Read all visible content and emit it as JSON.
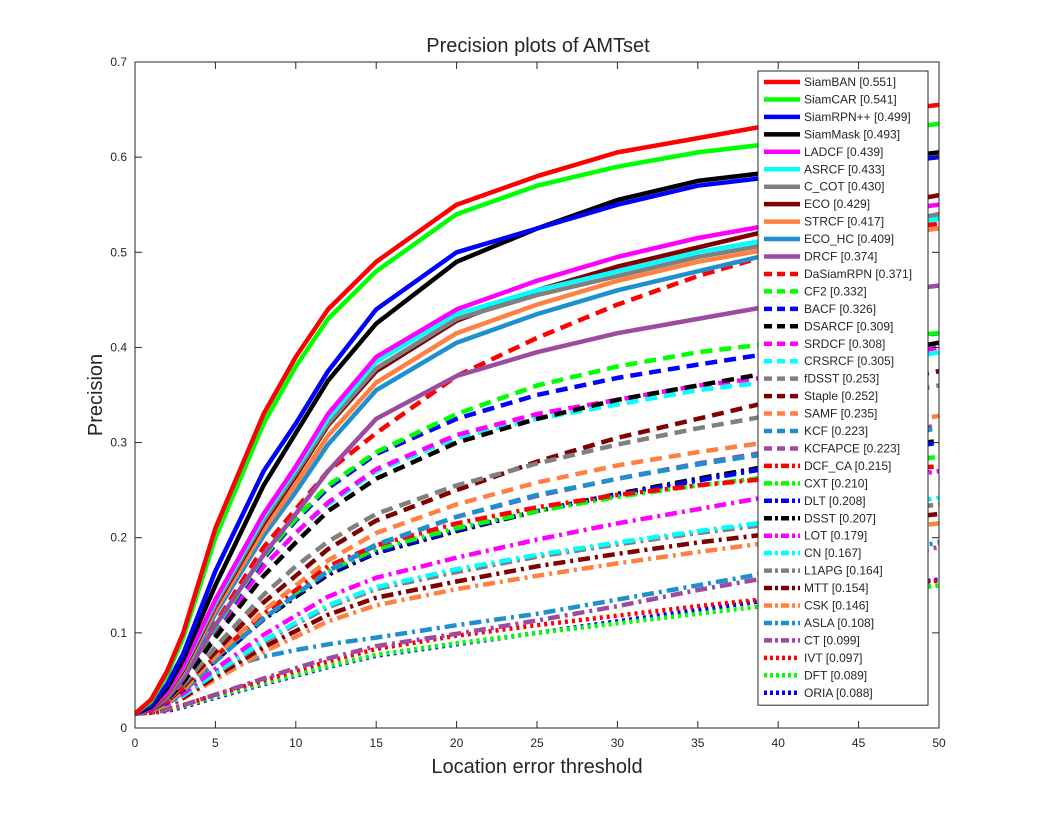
{
  "chart_data": {
    "type": "line",
    "title": "Precision plots of AMTset",
    "xlabel": "Location error threshold",
    "ylabel": "Precision",
    "xlim": [
      0,
      50
    ],
    "ylim": [
      0,
      0.7
    ],
    "xticks": [
      0,
      5,
      10,
      15,
      20,
      25,
      30,
      35,
      40,
      45,
      50
    ],
    "yticks": [
      0,
      0.1,
      0.2,
      0.3,
      0.4,
      0.5,
      0.6,
      0.7
    ],
    "grid": false,
    "legend_position": "top-right",
    "x": [
      0,
      1,
      2,
      3,
      5,
      8,
      10,
      12,
      15,
      20,
      25,
      30,
      35,
      40,
      45,
      50
    ],
    "series": [
      {
        "name": "SiamBAN [0.551]",
        "color": "#ff0000",
        "style": "solid",
        "values": [
          0.015,
          0.03,
          0.06,
          0.1,
          0.21,
          0.33,
          0.39,
          0.44,
          0.49,
          0.55,
          0.58,
          0.605,
          0.62,
          0.635,
          0.645,
          0.655
        ]
      },
      {
        "name": "SiamCAR [0.541]",
        "color": "#00ff00",
        "style": "solid",
        "values": [
          0.015,
          0.028,
          0.056,
          0.095,
          0.2,
          0.32,
          0.38,
          0.43,
          0.48,
          0.54,
          0.57,
          0.59,
          0.605,
          0.615,
          0.625,
          0.635
        ]
      },
      {
        "name": "SiamRPN++ [0.499]",
        "color": "#0000ff",
        "style": "solid",
        "values": [
          0.015,
          0.024,
          0.046,
          0.078,
          0.165,
          0.27,
          0.32,
          0.375,
          0.44,
          0.5,
          0.525,
          0.55,
          0.57,
          0.58,
          0.59,
          0.6
        ]
      },
      {
        "name": "SiamMask [0.493]",
        "color": "#000000",
        "style": "solid",
        "values": [
          0.015,
          0.022,
          0.042,
          0.072,
          0.15,
          0.255,
          0.31,
          0.365,
          0.425,
          0.49,
          0.525,
          0.555,
          0.575,
          0.585,
          0.595,
          0.605
        ]
      },
      {
        "name": "LADCF [0.439]",
        "color": "#ff00ff",
        "style": "solid",
        "values": [
          0.015,
          0.021,
          0.038,
          0.065,
          0.135,
          0.225,
          0.275,
          0.33,
          0.39,
          0.44,
          0.47,
          0.495,
          0.515,
          0.53,
          0.54,
          0.55
        ]
      },
      {
        "name": "ASRCF [0.433]",
        "color": "#00ffff",
        "style": "solid",
        "values": [
          0.015,
          0.021,
          0.038,
          0.064,
          0.133,
          0.222,
          0.272,
          0.325,
          0.385,
          0.435,
          0.46,
          0.48,
          0.5,
          0.515,
          0.525,
          0.535
        ]
      },
      {
        "name": "C_COT [0.430]",
        "color": "#808080",
        "style": "solid",
        "values": [
          0.015,
          0.021,
          0.037,
          0.063,
          0.13,
          0.218,
          0.268,
          0.32,
          0.378,
          0.43,
          0.455,
          0.475,
          0.495,
          0.51,
          0.525,
          0.54
        ]
      },
      {
        "name": "ECO [0.429]",
        "color": "#800000",
        "style": "solid",
        "values": [
          0.015,
          0.02,
          0.036,
          0.061,
          0.128,
          0.215,
          0.265,
          0.318,
          0.375,
          0.428,
          0.46,
          0.485,
          0.505,
          0.525,
          0.545,
          0.56
        ]
      },
      {
        "name": "STRCF [0.417]",
        "color": "#ff8040",
        "style": "solid",
        "values": [
          0.015,
          0.02,
          0.035,
          0.059,
          0.124,
          0.208,
          0.256,
          0.307,
          0.363,
          0.415,
          0.445,
          0.47,
          0.49,
          0.505,
          0.515,
          0.525
        ]
      },
      {
        "name": "ECO_HC [0.409]",
        "color": "#1e90d0",
        "style": "solid",
        "values": [
          0.015,
          0.02,
          0.034,
          0.057,
          0.12,
          0.202,
          0.248,
          0.298,
          0.355,
          0.405,
          0.435,
          0.46,
          0.48,
          0.5,
          0.52,
          0.54
        ]
      },
      {
        "name": "DRCF [0.374]",
        "color": "#9b4ba0",
        "style": "solid",
        "values": [
          0.015,
          0.019,
          0.031,
          0.052,
          0.108,
          0.182,
          0.225,
          0.27,
          0.325,
          0.37,
          0.395,
          0.415,
          0.43,
          0.445,
          0.455,
          0.465
        ]
      },
      {
        "name": "DaSiamRPN [0.371]",
        "color": "#ff0000",
        "style": "dashed",
        "values": [
          0.015,
          0.02,
          0.034,
          0.056,
          0.11,
          0.19,
          0.23,
          0.27,
          0.31,
          0.37,
          0.41,
          0.445,
          0.475,
          0.5,
          0.52,
          0.53
        ]
      },
      {
        "name": "CF2 [0.332]",
        "color": "#00ff00",
        "style": "dashed",
        "values": [
          0.015,
          0.02,
          0.033,
          0.054,
          0.105,
          0.18,
          0.22,
          0.255,
          0.29,
          0.33,
          0.36,
          0.38,
          0.395,
          0.405,
          0.41,
          0.415
        ]
      },
      {
        "name": "BACF [0.326]",
        "color": "#0000ff",
        "style": "dashed",
        "values": [
          0.015,
          0.02,
          0.033,
          0.054,
          0.104,
          0.178,
          0.218,
          0.252,
          0.288,
          0.325,
          0.35,
          0.368,
          0.382,
          0.395,
          0.405,
          0.415
        ]
      },
      {
        "name": "DSARCF [0.309]",
        "color": "#000000",
        "style": "dashed",
        "values": [
          0.015,
          0.019,
          0.03,
          0.048,
          0.095,
          0.16,
          0.195,
          0.228,
          0.262,
          0.3,
          0.325,
          0.345,
          0.36,
          0.375,
          0.39,
          0.405
        ]
      },
      {
        "name": "SRDCF [0.308]",
        "color": "#ff00ff",
        "style": "dashed",
        "values": [
          0.015,
          0.02,
          0.032,
          0.052,
          0.1,
          0.17,
          0.205,
          0.237,
          0.272,
          0.308,
          0.33,
          0.345,
          0.36,
          0.37,
          0.385,
          0.4
        ]
      },
      {
        "name": "CRSRCF [0.305]",
        "color": "#00ffff",
        "style": "dashed",
        "values": [
          0.015,
          0.02,
          0.032,
          0.052,
          0.1,
          0.17,
          0.205,
          0.235,
          0.27,
          0.305,
          0.325,
          0.34,
          0.355,
          0.365,
          0.38,
          0.395
        ]
      },
      {
        "name": "fDSST [0.253]",
        "color": "#808080",
        "style": "dashed",
        "values": [
          0.015,
          0.019,
          0.029,
          0.045,
          0.085,
          0.14,
          0.17,
          0.196,
          0.225,
          0.255,
          0.278,
          0.298,
          0.315,
          0.33,
          0.345,
          0.36
        ]
      },
      {
        "name": "Staple [0.252]",
        "color": "#800000",
        "style": "dashed",
        "values": [
          0.015,
          0.019,
          0.028,
          0.043,
          0.08,
          0.132,
          0.16,
          0.188,
          0.218,
          0.25,
          0.28,
          0.305,
          0.325,
          0.345,
          0.36,
          0.375
        ]
      },
      {
        "name": "SAMF [0.235]",
        "color": "#ff8040",
        "style": "dashed",
        "values": [
          0.015,
          0.018,
          0.026,
          0.04,
          0.075,
          0.123,
          0.15,
          0.176,
          0.205,
          0.235,
          0.258,
          0.276,
          0.29,
          0.302,
          0.315,
          0.328
        ]
      },
      {
        "name": "KCF [0.223]",
        "color": "#1e90d0",
        "style": "dashed",
        "values": [
          0.015,
          0.018,
          0.025,
          0.038,
          0.07,
          0.115,
          0.14,
          0.165,
          0.193,
          0.222,
          0.245,
          0.262,
          0.277,
          0.29,
          0.302,
          0.315
        ]
      },
      {
        "name": "KCFAPCE [0.223]",
        "color": "#9b4ba0",
        "style": "dashed",
        "values": [
          0.015,
          0.018,
          0.025,
          0.038,
          0.07,
          0.115,
          0.14,
          0.165,
          0.192,
          0.222,
          0.244,
          0.262,
          0.278,
          0.292,
          0.305,
          0.318
        ]
      },
      {
        "name": "DCF_CA [0.215]",
        "color": "#ff0000",
        "style": "dashdot",
        "values": [
          0.015,
          0.019,
          0.028,
          0.042,
          0.075,
          0.12,
          0.145,
          0.17,
          0.192,
          0.215,
          0.232,
          0.245,
          0.255,
          0.263,
          0.27,
          0.275
        ]
      },
      {
        "name": "CXT [0.210]",
        "color": "#00ff00",
        "style": "dashdot",
        "values": [
          0.015,
          0.019,
          0.028,
          0.042,
          0.074,
          0.118,
          0.142,
          0.165,
          0.188,
          0.21,
          0.228,
          0.243,
          0.255,
          0.265,
          0.275,
          0.285
        ]
      },
      {
        "name": "DLT [0.208]",
        "color": "#0000ff",
        "style": "dashdot",
        "values": [
          0.015,
          0.019,
          0.027,
          0.041,
          0.072,
          0.115,
          0.14,
          0.163,
          0.185,
          0.208,
          0.228,
          0.245,
          0.26,
          0.275,
          0.288,
          0.3
        ]
      },
      {
        "name": "DSST [0.207]",
        "color": "#000000",
        "style": "dashdot",
        "values": [
          0.015,
          0.019,
          0.027,
          0.04,
          0.071,
          0.114,
          0.138,
          0.161,
          0.184,
          0.207,
          0.228,
          0.246,
          0.262,
          0.277,
          0.29,
          0.302
        ]
      },
      {
        "name": "LOT [0.179]",
        "color": "#ff00ff",
        "style": "dashdot",
        "values": [
          0.015,
          0.018,
          0.025,
          0.036,
          0.062,
          0.098,
          0.118,
          0.138,
          0.158,
          0.179,
          0.198,
          0.215,
          0.23,
          0.245,
          0.258,
          0.27
        ]
      },
      {
        "name": "CN [0.167]",
        "color": "#00ffff",
        "style": "dashdot",
        "values": [
          0.015,
          0.018,
          0.024,
          0.034,
          0.058,
          0.092,
          0.111,
          0.129,
          0.148,
          0.167,
          0.182,
          0.195,
          0.207,
          0.218,
          0.23,
          0.242
        ]
      },
      {
        "name": "L1APG [0.164]",
        "color": "#808080",
        "style": "dashdot",
        "values": [
          0.015,
          0.018,
          0.024,
          0.034,
          0.057,
          0.09,
          0.109,
          0.127,
          0.146,
          0.164,
          0.18,
          0.193,
          0.205,
          0.215,
          0.225,
          0.235
        ]
      },
      {
        "name": "MTT [0.154]",
        "color": "#800000",
        "style": "dashdot",
        "values": [
          0.015,
          0.017,
          0.023,
          0.032,
          0.054,
          0.085,
          0.102,
          0.119,
          0.137,
          0.154,
          0.17,
          0.183,
          0.195,
          0.205,
          0.215,
          0.225
        ]
      },
      {
        "name": "CSK [0.146]",
        "color": "#ff8040",
        "style": "dashdot",
        "values": [
          0.015,
          0.017,
          0.022,
          0.031,
          0.051,
          0.08,
          0.096,
          0.112,
          0.129,
          0.146,
          0.16,
          0.173,
          0.185,
          0.196,
          0.206,
          0.215
        ]
      },
      {
        "name": "ASLA [0.108]",
        "color": "#1e90d0",
        "style": "dashdot",
        "values": [
          0.015,
          0.025,
          0.035,
          0.045,
          0.06,
          0.075,
          0.082,
          0.088,
          0.095,
          0.108,
          0.12,
          0.135,
          0.15,
          0.165,
          0.18,
          0.195
        ]
      },
      {
        "name": "CT [0.099]",
        "color": "#9b4ba0",
        "style": "dashdot",
        "values": [
          0.015,
          0.016,
          0.019,
          0.024,
          0.035,
          0.052,
          0.063,
          0.073,
          0.086,
          0.099,
          0.113,
          0.128,
          0.145,
          0.16,
          0.175,
          0.19
        ]
      },
      {
        "name": "IVT [0.097]",
        "color": "#ff0000",
        "style": "dotted",
        "values": [
          0.015,
          0.016,
          0.019,
          0.024,
          0.035,
          0.05,
          0.06,
          0.07,
          0.083,
          0.097,
          0.108,
          0.118,
          0.128,
          0.137,
          0.146,
          0.155
        ]
      },
      {
        "name": "DFT [0.089]",
        "color": "#00ff00",
        "style": "dotted",
        "values": [
          0.015,
          0.016,
          0.019,
          0.023,
          0.033,
          0.047,
          0.056,
          0.065,
          0.077,
          0.089,
          0.1,
          0.11,
          0.12,
          0.13,
          0.14,
          0.15
        ]
      },
      {
        "name": "ORIA [0.088]",
        "color": "#0000ff",
        "style": "dotted",
        "values": [
          0.015,
          0.016,
          0.018,
          0.022,
          0.032,
          0.046,
          0.055,
          0.064,
          0.076,
          0.088,
          0.1,
          0.112,
          0.124,
          0.136,
          0.146,
          0.156
        ]
      }
    ]
  }
}
